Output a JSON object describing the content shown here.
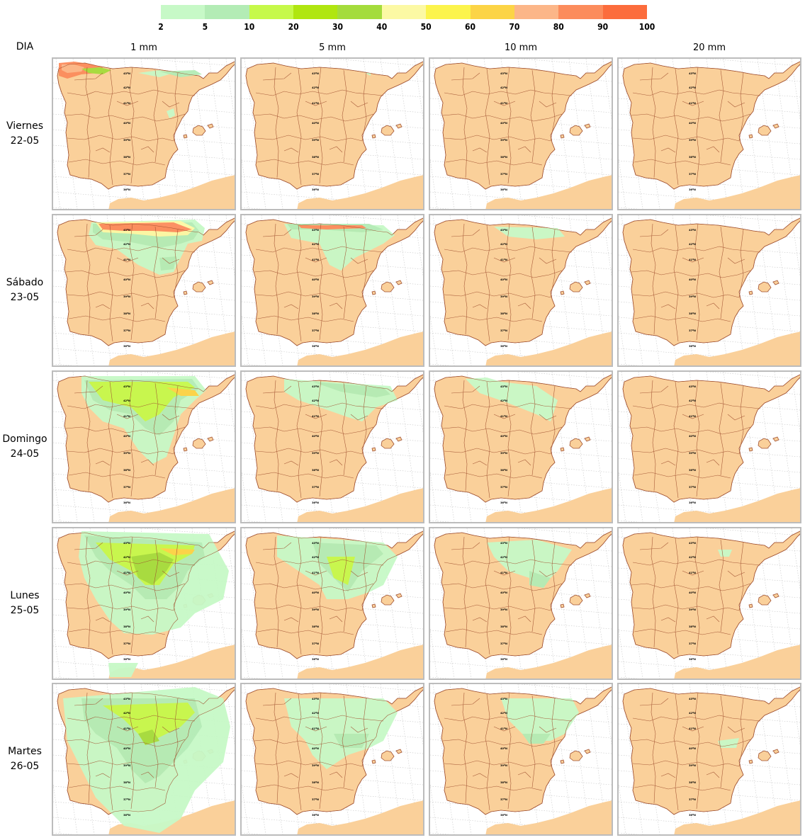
{
  "legend": {
    "colors": [
      "#c7f9c7",
      "#b3ecb5",
      "#c6f94a",
      "#b0e610",
      "#a4dc3c",
      "#fcf9a4",
      "#fcf44c",
      "#fcd446",
      "#fcb688",
      "#fc8c5c",
      "#fc6c3c"
    ],
    "ticks": [
      "2",
      "5",
      "10",
      "20",
      "30",
      "40",
      "50",
      "60",
      "70",
      "80",
      "90",
      "100"
    ]
  },
  "row_header": "DIA",
  "thresholds": [
    "1 mm",
    "5 mm",
    "10 mm",
    "20 mm"
  ],
  "days": [
    {
      "day": "Viernes",
      "date": "22-05"
    },
    {
      "day": "Sábado",
      "date": "23-05"
    },
    {
      "day": "Domingo",
      "date": "24-05"
    },
    {
      "day": "Lunes",
      "date": "25-05"
    },
    {
      "day": "Martes",
      "date": "26-05"
    }
  ],
  "map": {
    "land_color": "#fad09a",
    "sea_color": "#ffffff",
    "border_color": "#a05030",
    "grid_color": "#c8c8c8",
    "latitude_labels": [
      "43ºN",
      "42ºN",
      "41ºN",
      "40ºN",
      "39ºN",
      "38ºN",
      "37ºN",
      "36ºN"
    ]
  }
}
